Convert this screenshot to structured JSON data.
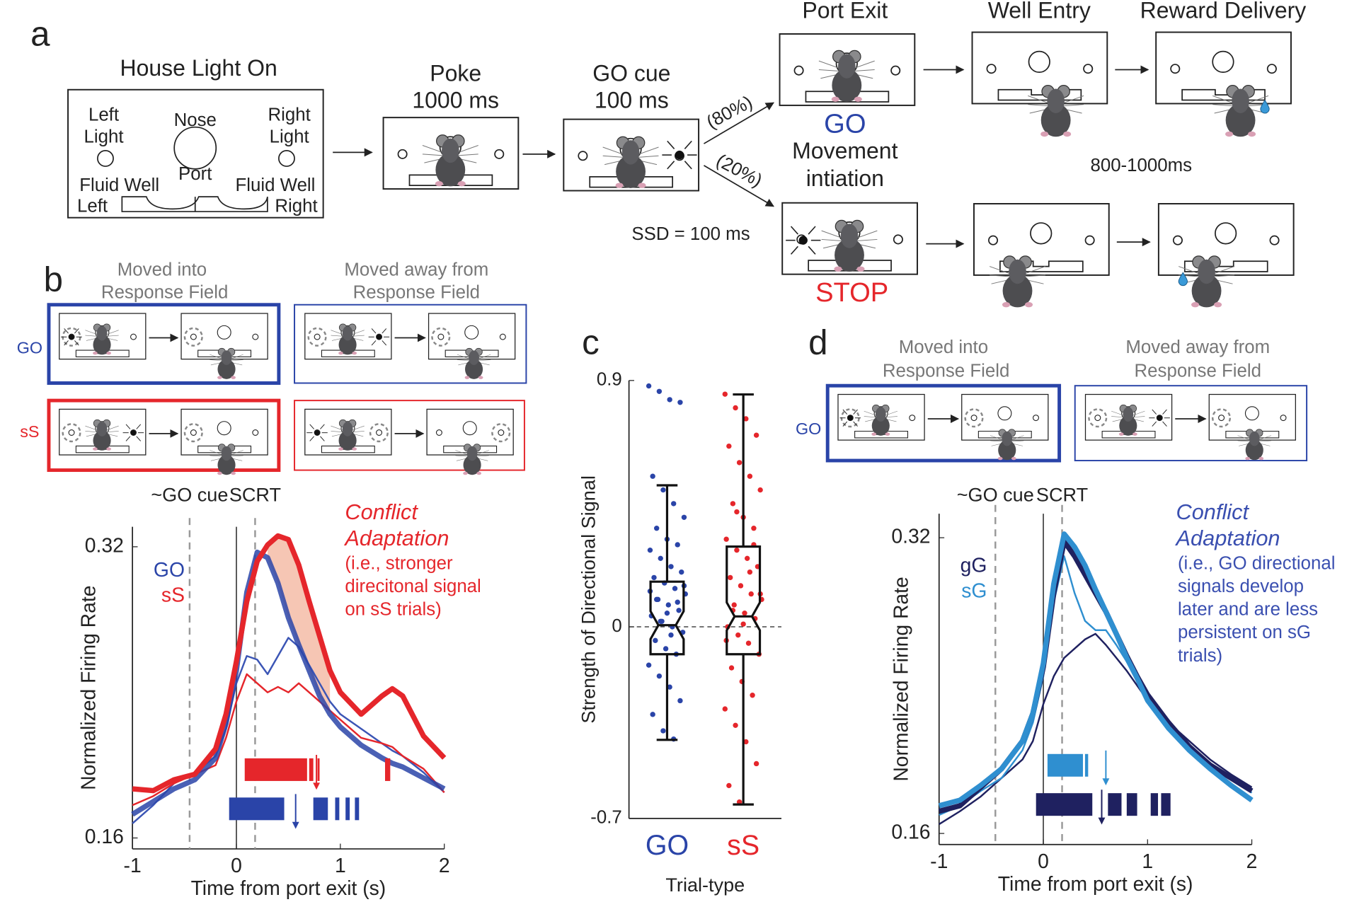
{
  "panel_a": {
    "label": "a",
    "house_light": "House Light On",
    "left_light": [
      "Left",
      "Light"
    ],
    "nose_port": [
      "Nose",
      "Port"
    ],
    "right_light": [
      "Right",
      "Light"
    ],
    "fluid_well_left": [
      "Fluid Well",
      "Left"
    ],
    "fluid_well_right": [
      "Fluid Well",
      "Right"
    ],
    "poke": [
      "Poke",
      "1000 ms"
    ],
    "go_cue": [
      "GO cue",
      "100 ms"
    ],
    "go_prob": "(80%)",
    "stop_prob": "(20%)",
    "port_exit": "Port Exit",
    "well_entry": "Well Entry",
    "reward_delivery": "Reward Delivery",
    "go": "GO",
    "movement": [
      "Movement",
      "intiation"
    ],
    "delay": "800-1000ms",
    "ssd": "SSD = 100 ms",
    "stop": "STOP"
  },
  "panel_b": {
    "label": "b",
    "into": [
      "Moved into",
      "Response Field"
    ],
    "away": [
      "Moved away from",
      "Response Field"
    ],
    "rows": [
      "GO",
      "sS"
    ]
  },
  "panel_c": {
    "label": "c"
  },
  "panel_d": {
    "label": "d",
    "into": [
      "Moved into",
      "Response Field"
    ],
    "away": [
      "Moved away from",
      "Response Field"
    ],
    "rows": [
      "GO"
    ]
  },
  "chart_data": [
    {
      "type": "line",
      "x": [
        -1,
        -0.8,
        -0.6,
        -0.4,
        -0.2,
        -0.1,
        0,
        0.1,
        0.2,
        0.3,
        0.4,
        0.5,
        0.6,
        0.7,
        0.8,
        0.9,
        1,
        1.2,
        1.4,
        1.5,
        1.6,
        1.8,
        2
      ],
      "series": [
        {
          "name": "GO",
          "color": "#2a44a8",
          "width": "thick",
          "values": [
            0.173,
            0.18,
            0.187,
            0.192,
            0.204,
            0.223,
            0.252,
            0.295,
            0.317,
            0.314,
            0.3,
            0.281,
            0.266,
            0.252,
            0.238,
            0.228,
            0.221,
            0.211,
            0.204,
            0.201,
            0.199,
            0.193,
            0.187
          ]
        },
        {
          "name": "sS",
          "color": "#e5262b",
          "width": "thick",
          "values": [
            0.187,
            0.186,
            0.192,
            0.195,
            0.209,
            0.228,
            0.257,
            0.29,
            0.312,
            0.321,
            0.326,
            0.324,
            0.31,
            0.29,
            0.271,
            0.252,
            0.24,
            0.228,
            0.238,
            0.242,
            0.238,
            0.216,
            0.204
          ]
        },
        {
          "color": "#3b55b5",
          "width": "thin",
          "values": [
            0.168,
            0.178,
            0.19,
            0.196,
            0.205,
            0.22,
            0.245,
            0.26,
            0.258,
            0.25,
            0.26,
            0.27,
            0.265,
            0.255,
            0.245,
            0.235,
            0.228,
            0.22,
            0.212,
            0.208,
            0.205,
            0.196,
            0.185
          ]
        },
        {
          "color": "#e5262b",
          "width": "thin",
          "values": [
            0.178,
            0.183,
            0.19,
            0.195,
            0.2,
            0.215,
            0.235,
            0.25,
            0.245,
            0.24,
            0.243,
            0.24,
            0.245,
            0.24,
            0.235,
            0.23,
            0.225,
            0.215,
            0.212,
            0.21,
            0.205,
            0.198,
            0.185
          ]
        }
      ],
      "xlim": [
        -1,
        2
      ],
      "xticks": [
        -1,
        0,
        1,
        2
      ],
      "ylim": [
        0.154,
        0.331
      ],
      "yticks": [
        0.16,
        0.32
      ],
      "xlabel": "Time from port exit (s)",
      "ylabel": "Normalized Firing Rate",
      "markers": [
        {
          "label": "~GO cue",
          "x": -0.45
        },
        {
          "label": "SCRT",
          "x": 0.18
        }
      ],
      "fill_between": [
        1,
        0
      ],
      "fill_color": "#f3b39b",
      "shade_x": [
        0.25,
        0.95
      ],
      "annotation": {
        "color": "#e5262b",
        "title": [
          "Conflict",
          "Adaptation"
        ],
        "body": [
          "(i.e., stronger",
          "direcitonal signal",
          "on sS trials)"
        ]
      },
      "rasters": [
        {
          "color": "#e5262b",
          "intervals": [
            [
              0.08,
              0.68
            ],
            [
              0.7,
              0.74
            ],
            [
              0.78,
              0.8
            ],
            [
              1.43,
              1.48
            ]
          ],
          "arrow": 0.77
        },
        {
          "color": "#2a44a8",
          "intervals": [
            [
              -0.07,
              0.46
            ],
            [
              0.74,
              0.88
            ],
            [
              0.95,
              0.99
            ],
            [
              1.05,
              1.09
            ],
            [
              1.14,
              1.18
            ]
          ],
          "arrow": 0.57
        }
      ]
    },
    {
      "type": "box",
      "categories": [
        "GO",
        "sS"
      ],
      "colors": [
        "#2a44a8",
        "#e5262b"
      ],
      "boxes": [
        {
          "whisker_low": -0.413,
          "q1": -0.1,
          "median": 0.006,
          "q3": 0.165,
          "whisker_high": 0.517
        },
        {
          "whisker_low": -0.649,
          "q1": -0.1,
          "median": 0.038,
          "q3": 0.293,
          "whisker_high": 0.849
        }
      ],
      "points": [
        [
          0.88,
          0.86,
          0.83,
          0.82,
          0.55,
          0.5,
          0.45,
          0.4,
          0.36,
          0.32,
          0.3,
          0.28,
          0.25,
          0.22,
          0.2,
          0.18,
          0.16,
          0.14,
          0.12,
          0.1,
          0.08,
          0.06,
          0.04,
          0.02,
          0,
          -0.02,
          -0.05,
          -0.08,
          -0.1,
          -0.14,
          -0.18,
          -0.22,
          -0.27,
          -0.32,
          -0.38,
          -0.41,
          0.15,
          0.1,
          0.05,
          0.09,
          0.13,
          0.02,
          -0.03
        ],
        [
          0.85,
          0.8,
          0.76,
          0.7,
          0.66,
          0.6,
          0.55,
          0.5,
          0.45,
          0.4,
          0.36,
          0.32,
          0.28,
          0.25,
          0.22,
          0.18,
          0.15,
          0.12,
          0.1,
          0.08,
          0.05,
          0.03,
          0,
          -0.03,
          -0.06,
          -0.1,
          -0.15,
          -0.2,
          -0.25,
          -0.3,
          -0.36,
          -0.42,
          -0.5,
          -0.58,
          -0.64,
          0.2,
          0.12,
          0.06,
          0.01,
          0.3,
          -0.05,
          0.42
        ]
      ],
      "ylim": [
        -0.7,
        0.9
      ],
      "yticks": [
        -0.7,
        0,
        0.9
      ],
      "hline": 0,
      "xlabel": "Trial-type",
      "ylabel": "Strength of Directional Signal"
    },
    {
      "type": "line",
      "x": [
        -1,
        -0.8,
        -0.6,
        -0.4,
        -0.2,
        -0.1,
        0,
        0.1,
        0.2,
        0.3,
        0.4,
        0.5,
        0.6,
        0.7,
        0.8,
        0.9,
        1,
        1.2,
        1.4,
        1.5,
        1.6,
        1.8,
        2
      ],
      "series": [
        {
          "name": "gG",
          "color": "#1f2160",
          "width": "thick",
          "values": [
            0.172,
            0.175,
            0.185,
            0.195,
            0.21,
            0.225,
            0.25,
            0.29,
            0.318,
            0.31,
            0.3,
            0.29,
            0.28,
            0.268,
            0.256,
            0.245,
            0.235,
            0.22,
            0.207,
            0.202,
            0.197,
            0.19,
            0.183
          ]
        },
        {
          "name": "sG",
          "color": "#2f8fd0",
          "width": "thick",
          "values": [
            0.175,
            0.178,
            0.186,
            0.195,
            0.21,
            0.225,
            0.252,
            0.295,
            0.322,
            0.315,
            0.305,
            0.292,
            0.28,
            0.268,
            0.255,
            0.244,
            0.232,
            0.217,
            0.205,
            0.2,
            0.195,
            0.186,
            0.178
          ]
        },
        {
          "color": "#1f2160",
          "width": "thin",
          "values": [
            0.165,
            0.172,
            0.18,
            0.19,
            0.2,
            0.21,
            0.23,
            0.245,
            0.255,
            0.26,
            0.265,
            0.268,
            0.262,
            0.255,
            0.248,
            0.24,
            0.232,
            0.22,
            0.21,
            0.205,
            0.2,
            0.192,
            0.185
          ]
        },
        {
          "color": "#2f8fd0",
          "width": "thin",
          "values": [
            0.17,
            0.175,
            0.183,
            0.19,
            0.205,
            0.22,
            0.245,
            0.285,
            0.31,
            0.29,
            0.275,
            0.27,
            0.27,
            0.262,
            0.253,
            0.243,
            0.235,
            0.22,
            0.208,
            0.203,
            0.198,
            0.19,
            0.182
          ]
        }
      ],
      "xlim": [
        -1,
        2
      ],
      "xticks": [
        -1,
        0,
        1,
        2
      ],
      "ylim": [
        0.154,
        0.333
      ],
      "yticks": [
        0.16,
        0.32
      ],
      "xlabel": "Time from port exit (s)",
      "ylabel": "Normalized Firing Rate",
      "markers": [
        {
          "label": "~GO cue",
          "x": -0.46
        },
        {
          "label": "SCRT",
          "x": 0.18
        }
      ],
      "annotation": {
        "color": "#3a4fb0",
        "title": [
          "Conflict",
          "Adaptation"
        ],
        "body": [
          "(i.e., GO directional",
          "signals develop",
          "later and are less",
          "persistent on sG",
          "trials)"
        ]
      },
      "rasters": [
        {
          "color": "#2f8fd0",
          "intervals": [
            [
              0.04,
              0.38
            ],
            [
              0.4,
              0.43
            ]
          ],
          "arrow": 0.6
        },
        {
          "color": "#1f2160",
          "intervals": [
            [
              -0.07,
              0.47
            ],
            [
              0.62,
              0.75
            ],
            [
              0.8,
              0.9
            ],
            [
              1.03,
              1.1
            ],
            [
              1.13,
              1.22
            ]
          ],
          "arrow": 0.56
        }
      ]
    }
  ]
}
